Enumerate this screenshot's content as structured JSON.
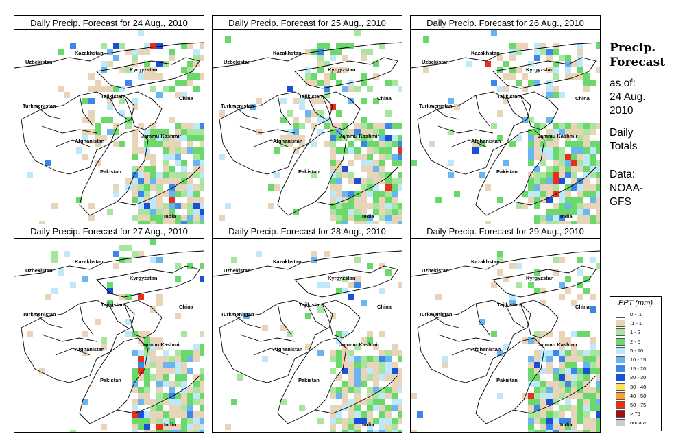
{
  "panels": [
    {
      "title": "Daily Precip. Forecast for  24 Aug., 2010"
    },
    {
      "title": "Daily Precip. Forecast for  25 Aug., 2010"
    },
    {
      "title": "Daily Precip. Forecast for  26 Aug., 2010"
    },
    {
      "title": "Daily Precip. Forecast for  27 Aug., 2010"
    },
    {
      "title": "Daily Precip. Forecast for  28 Aug., 2010"
    },
    {
      "title": "Daily Precip. Forecast for  29 Aug., 2010"
    }
  ],
  "map_labels": {
    "kazakhstan": "Kazakhstan",
    "uzbekistan": "Uzbekistan",
    "kyrgyzstan": "Kyrgyzstan",
    "tajikistan": "Tajikistan",
    "turkmenistan": "Turkmenistan",
    "china": "China",
    "afghanistan": "Afghanistan",
    "jammu_kashmir": "Jammu Kashmir",
    "pakistan": "Pakistan",
    "india": "India"
  },
  "side": {
    "title_line1": "Precip.",
    "title_line2": "Forecast",
    "asof_line1": "as of:",
    "asof_line2": "24 Aug.",
    "asof_line3": "2010",
    "totals_line1": "Daily",
    "totals_line2": "Totals",
    "data_line1": "Data:",
    "data_line2": "NOAA-",
    "data_line3": "GFS"
  },
  "legend": {
    "title": "PPT (mm)",
    "items": [
      {
        "label": "0 - .1",
        "color": "#ffffff"
      },
      {
        "label": ".1 - 1",
        "color": "#e8d4b8"
      },
      {
        "label": "1 - 2",
        "color": "#a8e6a0"
      },
      {
        "label": "2 - 5",
        "color": "#6ad86a"
      },
      {
        "label": "5 - 10",
        "color": "#bfe8f8"
      },
      {
        "label": "10 - 15",
        "color": "#6ab4f0"
      },
      {
        "label": "15 - 20",
        "color": "#3c86e8"
      },
      {
        "label": "20 - 30",
        "color": "#1a4fd8"
      },
      {
        "label": "30 - 40",
        "color": "#f8e060"
      },
      {
        "label": "40 - 50",
        "color": "#f8a030"
      },
      {
        "label": "50 - 75",
        "color": "#e83018"
      },
      {
        "label": "> 75",
        "color": "#a01010"
      },
      {
        "label": "nodata",
        "color": "#cccccc"
      }
    ]
  }
}
